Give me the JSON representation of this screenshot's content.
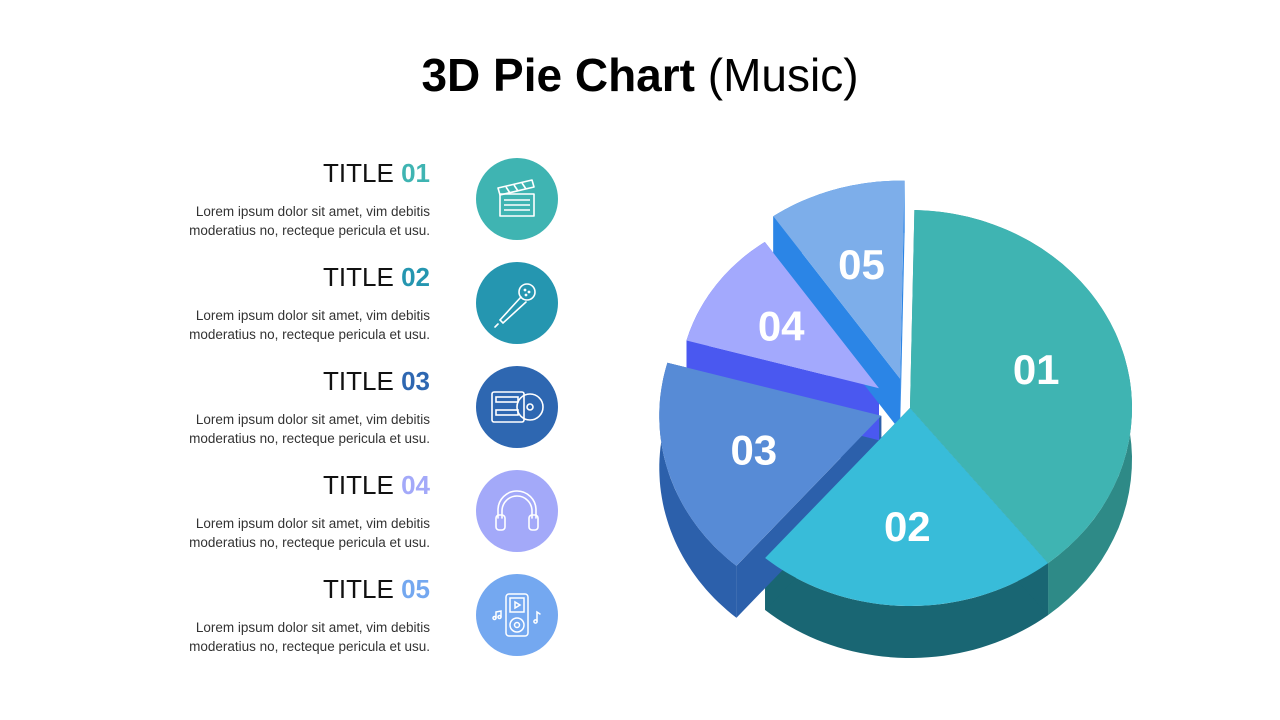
{
  "header": {
    "title_bold": "3D Pie Chart",
    "title_light": "(Music)"
  },
  "items": [
    {
      "title_word": "TITLE",
      "num": "01",
      "desc": "Lorem ipsum dolor sit amet, vim debitis moderatius no, recteque pericula et usu.",
      "color": "#3fb4b2",
      "icon": "clapperboard-icon"
    },
    {
      "title_word": "TITLE",
      "num": "02",
      "desc": "Lorem ipsum dolor sit amet, vim debitis moderatius no, recteque pericula et usu.",
      "color": "#2596b0",
      "icon": "microphone-icon"
    },
    {
      "title_word": "TITLE",
      "num": "03",
      "desc": "Lorem ipsum dolor sit amet, vim debitis moderatius no, recteque pericula et usu.",
      "color": "#2e67b1",
      "icon": "cd-player-icon"
    },
    {
      "title_word": "TITLE",
      "num": "04",
      "desc": "Lorem ipsum dolor sit amet, vim debitis moderatius no, recteque pericula et usu.",
      "color": "#a3a9f9",
      "icon": "headphones-icon"
    },
    {
      "title_word": "TITLE",
      "num": "05",
      "desc": "Lorem ipsum dolor sit amet, vim debitis moderatius no, recteque pericula et usu.",
      "color": "#74a8f0",
      "icon": "music-player-icon"
    }
  ],
  "chart_data": {
    "type": "pie",
    "title": "3D Pie Chart (Music)",
    "categories": [
      "01",
      "02",
      "03",
      "04",
      "05"
    ],
    "values": [
      39,
      22,
      18,
      11,
      10
    ],
    "colors": [
      "#3fb4b2",
      "#38bcd9",
      "#578bd6",
      "#a3a9fd",
      "#7daeea"
    ],
    "side_colors": [
      "#2e8a87",
      "#196673",
      "#2c60ab",
      "#4a58f0",
      "#2b85e6"
    ],
    "labels": [
      "01",
      "02",
      "03",
      "04",
      "05"
    ]
  }
}
